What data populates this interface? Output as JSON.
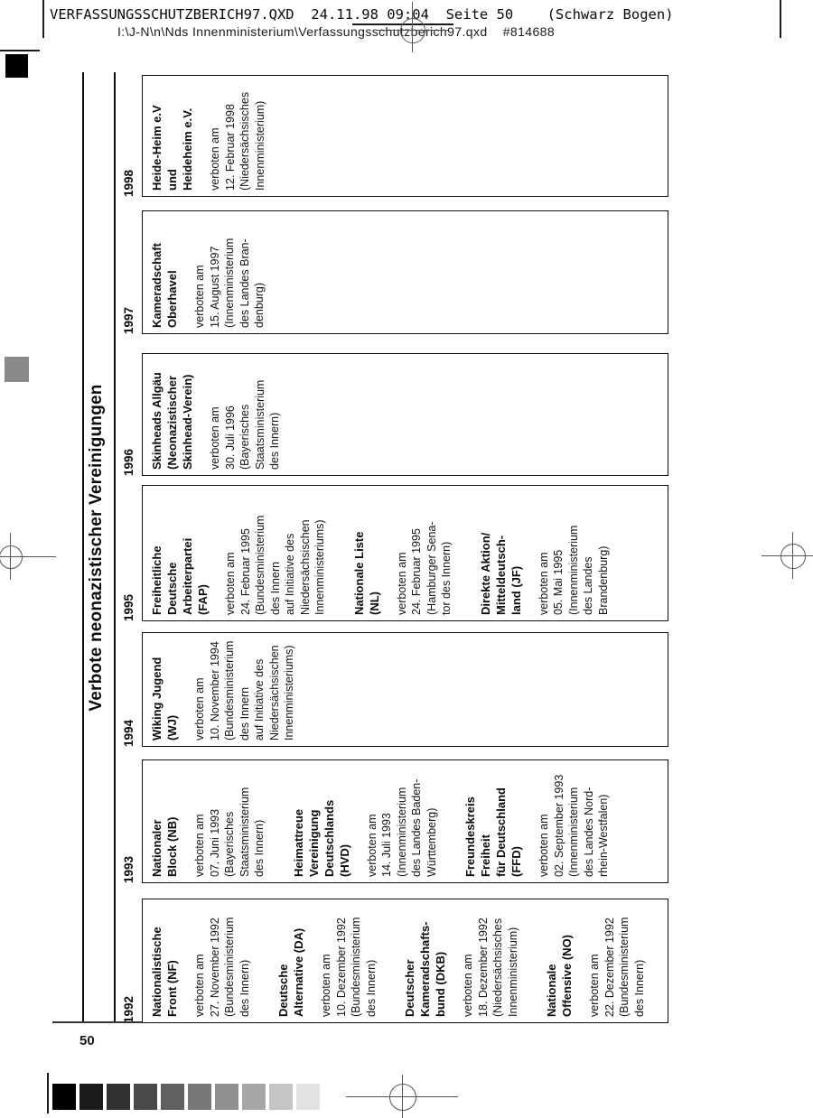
{
  "header": {
    "line1": "VERFASSUNGSSCHUTZBERICH97.QXD  24.11.98 09:04  Seite 50    (Schwarz Bogen)",
    "line2": "I:\\J-N\\n\\Nds Innenministerium\\Verfassungsschutzberich97.qxd    #814688"
  },
  "page_number": "50",
  "chart": {
    "title": "Verbote neonazistischer Vereinigungen",
    "columns": [
      {
        "year": "1992",
        "entries": [
          {
            "name": [
              "Nationalistische",
              "Front (NF)"
            ],
            "details": [
              "verboten am",
              "27. November 1992",
              "(Bundesministerium",
              "des Innern)"
            ]
          },
          {
            "name": [
              "Deutsche",
              "Alternative (DA)"
            ],
            "details": [
              "verboten am",
              "10. Dezember 1992",
              "(Bundesministerium",
              "des Innern)"
            ]
          },
          {
            "name": [
              "Deutscher",
              "Kameradschafts-",
              "bund (DKB)"
            ],
            "details": [
              "verboten am",
              "18. Dezember 1992",
              "(Niedersächsisches",
              "Innenministerium)"
            ]
          },
          {
            "name": [
              "Nationale",
              "Offensive (NO)"
            ],
            "details": [
              "verboten am",
              "22. Dezember 1992",
              "(Bundesministerium",
              "des Innern)"
            ]
          }
        ]
      },
      {
        "year": "1993",
        "entries": [
          {
            "name": [
              "Nationaler",
              "Block (NB)"
            ],
            "details": [
              "verboten am",
              "07. Juni 1993",
              "(Bayerisches",
              "Staatsministerium",
              "des Innern)"
            ]
          },
          {
            "name": [
              "Heimattreue",
              "Vereinigung",
              "Deutschlands",
              "(HVD)"
            ],
            "details": [
              "verboten am",
              "14. Juli 1993",
              "(Innenministerium",
              "des Landes Baden-",
              "Württemberg)"
            ]
          },
          {
            "name": [
              "Freundeskreis",
              "Freiheit",
              "für Deutschland",
              "(FFD)"
            ],
            "details": [
              "verboten am",
              "02. September 1993",
              "(Innenministerium",
              "des Landes Nord-",
              "rhein-Westfalen)"
            ]
          }
        ]
      },
      {
        "year": "1994",
        "entries": [
          {
            "name": [
              "Wiking Jugend",
              "(WJ)"
            ],
            "details": [
              "verboten am",
              "10. November 1994",
              "(Bundesministerium",
              "des Innern",
              "auf Initiative des",
              "Niedersächsischen",
              "Innenministeriums)"
            ]
          }
        ]
      },
      {
        "year": "1995",
        "entries": [
          {
            "name": [
              "Freiheitliche",
              "Deutsche",
              "Arbeiterpartei",
              "(FAP)"
            ],
            "details": [
              "verboten am",
              "24. Februar 1995",
              "(Bundesministerium",
              "des Innern",
              "auf Initiative des",
              "Niedersächsischen",
              "Innenministeriums)"
            ]
          },
          {
            "name": [
              "Nationale Liste",
              "(NL)"
            ],
            "details": [
              "verboten am",
              "24. Februar 1995",
              "(Hamburger Sena-",
              "tor des Innern)"
            ]
          },
          {
            "name": [
              "Direkte Aktion/",
              "Mitteldeutsch-",
              "land (JF)"
            ],
            "details": [
              "verboten am",
              "05. Mai 1995",
              "(Innenministerium",
              "des Landes",
              "Brandenburg)"
            ]
          }
        ]
      },
      {
        "year": "1996",
        "entries": [
          {
            "name": [
              "Skinheads Allgäu",
              "(Neonazistischer",
              "Skinhead-Verein)"
            ],
            "details": [
              "verboten am",
              "30. Juli 1996",
              "(Bayerisches",
              "Staatsministerium",
              "des Innern)"
            ]
          }
        ]
      },
      {
        "year": "1997",
        "entries": [
          {
            "name": [
              "Kameradschaft",
              "Oberhavel"
            ],
            "details": [
              "verboten am",
              "15. August 1997",
              "(Innenministerium",
              "des Landes Bran-",
              "denburg)"
            ]
          }
        ]
      },
      {
        "year": "1998",
        "entries": [
          {
            "name": [
              "Heide-Heim e.V",
              "und",
              "Heideheim e.V."
            ],
            "details": [
              "verboten am",
              "12. Februar 1998",
              "(Niedersächsisches",
              "Innenministerium)"
            ]
          }
        ]
      }
    ]
  },
  "print_marks": {
    "gray_square_color": "#8a8a8a",
    "black_square_color": "#000000",
    "color_bar_steps": [
      "#000000",
      "#1a1a1a",
      "#313131",
      "#494949",
      "#606060",
      "#777777",
      "#909090",
      "#a7a7a7",
      "#c5c5c5",
      "#e2e2e2"
    ]
  }
}
